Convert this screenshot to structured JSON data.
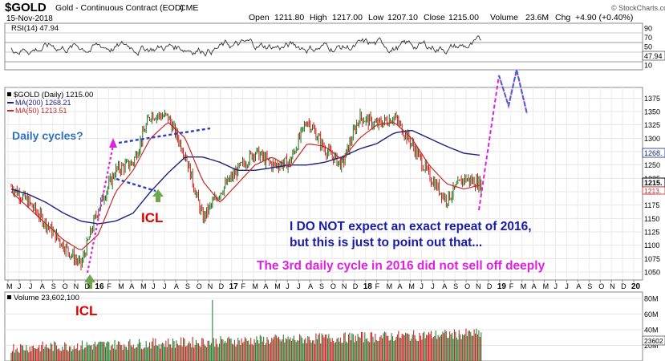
{
  "header": {
    "symbol": "$GOLD",
    "name": "Gold - Continuous Contract (EOD)",
    "exchange": "CME",
    "date": "15-Nov-2018",
    "open_label": "Open",
    "open": "1211.80",
    "high_label": "High",
    "high": "1217.00",
    "low_label": "Low",
    "low": "1207.10",
    "close_label": "Close",
    "close": "1215.00",
    "volume_label": "Volume",
    "volume": "23.6M",
    "chg_label": "Chg",
    "chg": "+4.90 (+0.40%)",
    "watermark": "© StockCharts.com"
  },
  "rsi_panel": {
    "legend": "RSI(14) 47.94",
    "value_badge": "47.94",
    "ticks": [
      "90",
      "70",
      "50",
      "30",
      "10"
    ]
  },
  "price_panel": {
    "legend_main": "$GOLD (Daily) 1215.00",
    "legend_ma200": "MA(200) 1268.21",
    "legend_ma50": "MA(50) 1213.51",
    "badge_ma200": "1268.",
    "badge_price": "1215.",
    "badge_ma50": "1213.",
    "ticks": [
      "1375",
      "1350",
      "1325",
      "1300",
      "1275",
      "1250",
      "1225",
      "1200",
      "1175",
      "1150",
      "1125",
      "1100",
      "1075",
      "1050"
    ]
  },
  "volume_panel": {
    "legend": "Volume 23,602,100",
    "badge": "23602",
    "ticks": [
      "80M",
      "60M",
      "40M",
      "20M"
    ]
  },
  "x_axis": {
    "labels": [
      "M",
      "J",
      "J",
      "A",
      "S",
      "O",
      "N",
      "D",
      "16",
      "F",
      "M",
      "A",
      "M",
      "J",
      "J",
      "A",
      "S",
      "O",
      "N",
      "D",
      "17",
      "F",
      "M",
      "A",
      "M",
      "J",
      "J",
      "A",
      "S",
      "O",
      "N",
      "D",
      "18",
      "F",
      "M",
      "A",
      "M",
      "J",
      "J",
      "A",
      "S",
      "O",
      "N",
      "D",
      "19",
      "F",
      "M",
      "A",
      "M",
      "J",
      "J",
      "A",
      "S",
      "O",
      "N",
      "D",
      "20"
    ],
    "bold_labels": [
      "16",
      "17",
      "18",
      "19",
      "20"
    ]
  },
  "annotations": {
    "daily_cycles": "Daily cycles?",
    "icl_upper": "ICL",
    "icl_lower": "ICL",
    "note_line1": "I DO NOT expect an exact repeat of 2016,",
    "note_line2": "but this is just to point out that...",
    "note_line3": "The 3rd daily cycle in 2016 did not sell off deeply"
  },
  "colors": {
    "price_bar_up": "#006400",
    "price_bar_down": "#cc0000",
    "ma200": "#1a237e",
    "ma50": "#c62828",
    "projection_magenta": "#e020e0",
    "projection_blue": "#3070c0",
    "note_blue": "#1a1aa8",
    "note_magenta": "#e020e0",
    "icl_red": "#dd0000",
    "daily_cycles_blue": "#3070c0",
    "arrow_green": "#6fa84a"
  },
  "chart_data": {
    "type": "line",
    "title": "$GOLD Gold - Continuous Contract (EOD) CME",
    "xlabel": "",
    "ylabel": "",
    "ylim": [
      1035,
      1395
    ],
    "x": [
      "2015-05",
      "2015-07",
      "2015-09",
      "2015-11",
      "2015-12",
      "2016-02",
      "2016-03",
      "2016-05",
      "2016-07",
      "2016-08",
      "2016-10",
      "2016-12",
      "2017-01",
      "2017-03",
      "2017-04",
      "2017-06",
      "2017-07",
      "2017-09",
      "2017-10",
      "2017-12",
      "2018-01",
      "2018-03",
      "2018-04",
      "2018-06",
      "2018-07",
      "2018-08",
      "2018-10",
      "2018-11"
    ],
    "series": [
      {
        "name": "$GOLD",
        "values": [
          1210,
          1180,
          1140,
          1100,
          1062,
          1170,
          1240,
          1255,
          1345,
          1340,
          1270,
          1150,
          1200,
          1240,
          1275,
          1250,
          1255,
          1335,
          1280,
          1250,
          1340,
          1325,
          1340,
          1290,
          1230,
          1185,
          1225,
          1215
        ]
      },
      {
        "name": "MA(200)",
        "values": [
          1205,
          1195,
          1180,
          1160,
          1145,
          1140,
          1145,
          1160,
          1200,
          1235,
          1265,
          1265,
          1255,
          1240,
          1240,
          1245,
          1250,
          1250,
          1255,
          1265,
          1280,
          1290,
          1310,
          1315,
          1300,
          1285,
          1272,
          1268
        ]
      },
      {
        "name": "MA(50)",
        "values": [
          1200,
          1170,
          1140,
          1110,
          1090,
          1120,
          1200,
          1240,
          1300,
          1330,
          1300,
          1220,
          1180,
          1215,
          1250,
          1265,
          1245,
          1290,
          1285,
          1260,
          1300,
          1325,
          1330,
          1300,
          1250,
          1215,
          1205,
          1213
        ]
      }
    ],
    "rsi": {
      "name": "RSI(14)",
      "last": 47.94,
      "ylim": [
        0,
        100
      ],
      "levels": [
        70,
        30
      ]
    },
    "volume": {
      "name": "Volume",
      "last": 23602100,
      "ylim": [
        0,
        80000000
      ]
    }
  }
}
